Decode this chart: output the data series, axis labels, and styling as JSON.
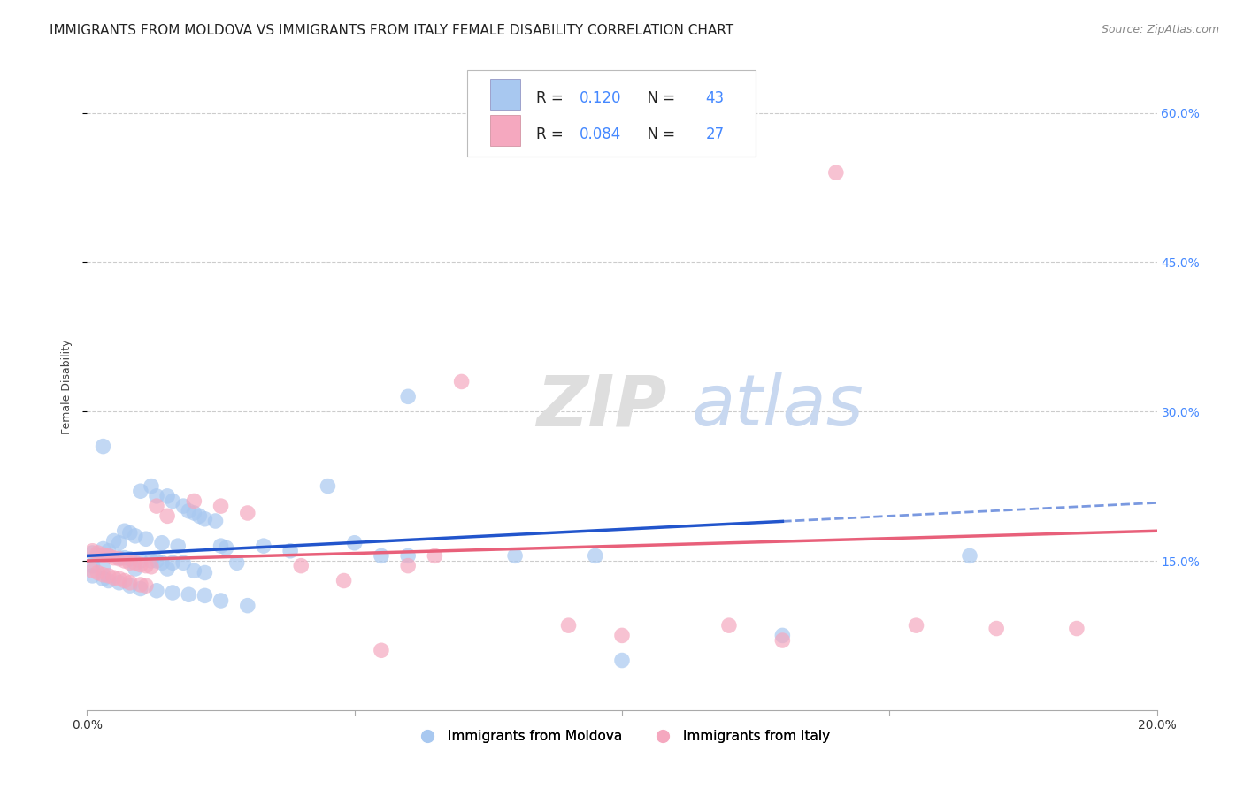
{
  "title": "IMMIGRANTS FROM MOLDOVA VS IMMIGRANTS FROM ITALY FEMALE DISABILITY CORRELATION CHART",
  "source": "Source: ZipAtlas.com",
  "ylabel": "Female Disability",
  "xlim": [
    0.0,
    0.2
  ],
  "ylim": [
    0.0,
    0.65
  ],
  "yticks": [
    0.15,
    0.3,
    0.45,
    0.6
  ],
  "ytick_labels": [
    "15.0%",
    "30.0%",
    "45.0%",
    "60.0%"
  ],
  "xticks": [
    0.0,
    0.05,
    0.1,
    0.15,
    0.2
  ],
  "xtick_labels": [
    "0.0%",
    "",
    "",
    "",
    "20.0%"
  ],
  "moldova_color": "#a8c8f0",
  "italy_color": "#f5a8bf",
  "moldova_line_color": "#2255cc",
  "italy_line_color": "#e8607a",
  "right_yaxis_color": "#4488ff",
  "moldova_scatter": [
    [
      0.003,
      0.265
    ],
    [
      0.01,
      0.22
    ],
    [
      0.012,
      0.225
    ],
    [
      0.013,
      0.215
    ],
    [
      0.015,
      0.215
    ],
    [
      0.016,
      0.21
    ],
    [
      0.018,
      0.205
    ],
    [
      0.019,
      0.2
    ],
    [
      0.02,
      0.198
    ],
    [
      0.021,
      0.195
    ],
    [
      0.022,
      0.192
    ],
    [
      0.024,
      0.19
    ],
    [
      0.007,
      0.18
    ],
    [
      0.008,
      0.178
    ],
    [
      0.009,
      0.175
    ],
    [
      0.011,
      0.172
    ],
    [
      0.005,
      0.17
    ],
    [
      0.006,
      0.168
    ],
    [
      0.014,
      0.168
    ],
    [
      0.017,
      0.165
    ],
    [
      0.003,
      0.162
    ],
    [
      0.004,
      0.16
    ],
    [
      0.025,
      0.165
    ],
    [
      0.026,
      0.163
    ],
    [
      0.001,
      0.158
    ],
    [
      0.002,
      0.156
    ],
    [
      0.004,
      0.155
    ],
    [
      0.006,
      0.153
    ],
    [
      0.007,
      0.153
    ],
    [
      0.008,
      0.152
    ],
    [
      0.01,
      0.15
    ],
    [
      0.012,
      0.15
    ],
    [
      0.013,
      0.15
    ],
    [
      0.014,
      0.148
    ],
    [
      0.016,
      0.148
    ],
    [
      0.018,
      0.148
    ],
    [
      0.001,
      0.145
    ],
    [
      0.003,
      0.143
    ],
    [
      0.009,
      0.142
    ],
    [
      0.015,
      0.142
    ],
    [
      0.02,
      0.14
    ],
    [
      0.022,
      0.138
    ],
    [
      0.028,
      0.148
    ],
    [
      0.033,
      0.165
    ],
    [
      0.038,
      0.16
    ],
    [
      0.045,
      0.225
    ],
    [
      0.05,
      0.168
    ],
    [
      0.055,
      0.155
    ],
    [
      0.06,
      0.155
    ],
    [
      0.001,
      0.135
    ],
    [
      0.003,
      0.132
    ],
    [
      0.004,
      0.13
    ],
    [
      0.006,
      0.128
    ],
    [
      0.008,
      0.125
    ],
    [
      0.01,
      0.122
    ],
    [
      0.013,
      0.12
    ],
    [
      0.016,
      0.118
    ],
    [
      0.019,
      0.116
    ],
    [
      0.022,
      0.115
    ],
    [
      0.025,
      0.11
    ],
    [
      0.03,
      0.105
    ],
    [
      0.06,
      0.315
    ],
    [
      0.08,
      0.155
    ],
    [
      0.095,
      0.155
    ],
    [
      0.1,
      0.05
    ],
    [
      0.13,
      0.075
    ],
    [
      0.165,
      0.155
    ]
  ],
  "italy_scatter": [
    [
      0.001,
      0.16
    ],
    [
      0.002,
      0.158
    ],
    [
      0.003,
      0.156
    ],
    [
      0.004,
      0.155
    ],
    [
      0.005,
      0.153
    ],
    [
      0.006,
      0.152
    ],
    [
      0.007,
      0.15
    ],
    [
      0.008,
      0.148
    ],
    [
      0.009,
      0.148
    ],
    [
      0.01,
      0.146
    ],
    [
      0.011,
      0.145
    ],
    [
      0.012,
      0.144
    ],
    [
      0.001,
      0.14
    ],
    [
      0.002,
      0.138
    ],
    [
      0.003,
      0.136
    ],
    [
      0.004,
      0.135
    ],
    [
      0.005,
      0.133
    ],
    [
      0.006,
      0.132
    ],
    [
      0.007,
      0.13
    ],
    [
      0.008,
      0.128
    ],
    [
      0.01,
      0.126
    ],
    [
      0.011,
      0.125
    ],
    [
      0.013,
      0.205
    ],
    [
      0.015,
      0.195
    ],
    [
      0.02,
      0.21
    ],
    [
      0.025,
      0.205
    ],
    [
      0.03,
      0.198
    ],
    [
      0.04,
      0.145
    ],
    [
      0.048,
      0.13
    ],
    [
      0.06,
      0.145
    ],
    [
      0.065,
      0.155
    ],
    [
      0.07,
      0.33
    ],
    [
      0.09,
      0.085
    ],
    [
      0.1,
      0.075
    ],
    [
      0.12,
      0.085
    ],
    [
      0.13,
      0.07
    ],
    [
      0.055,
      0.06
    ],
    [
      0.14,
      0.54
    ],
    [
      0.155,
      0.085
    ],
    [
      0.17,
      0.082
    ],
    [
      0.185,
      0.082
    ]
  ],
  "watermark_zip": "ZIP",
  "watermark_atlas": "atlas",
  "background_color": "#ffffff",
  "grid_color": "#cccccc",
  "title_fontsize": 11,
  "axis_label_fontsize": 9,
  "tick_fontsize": 10
}
